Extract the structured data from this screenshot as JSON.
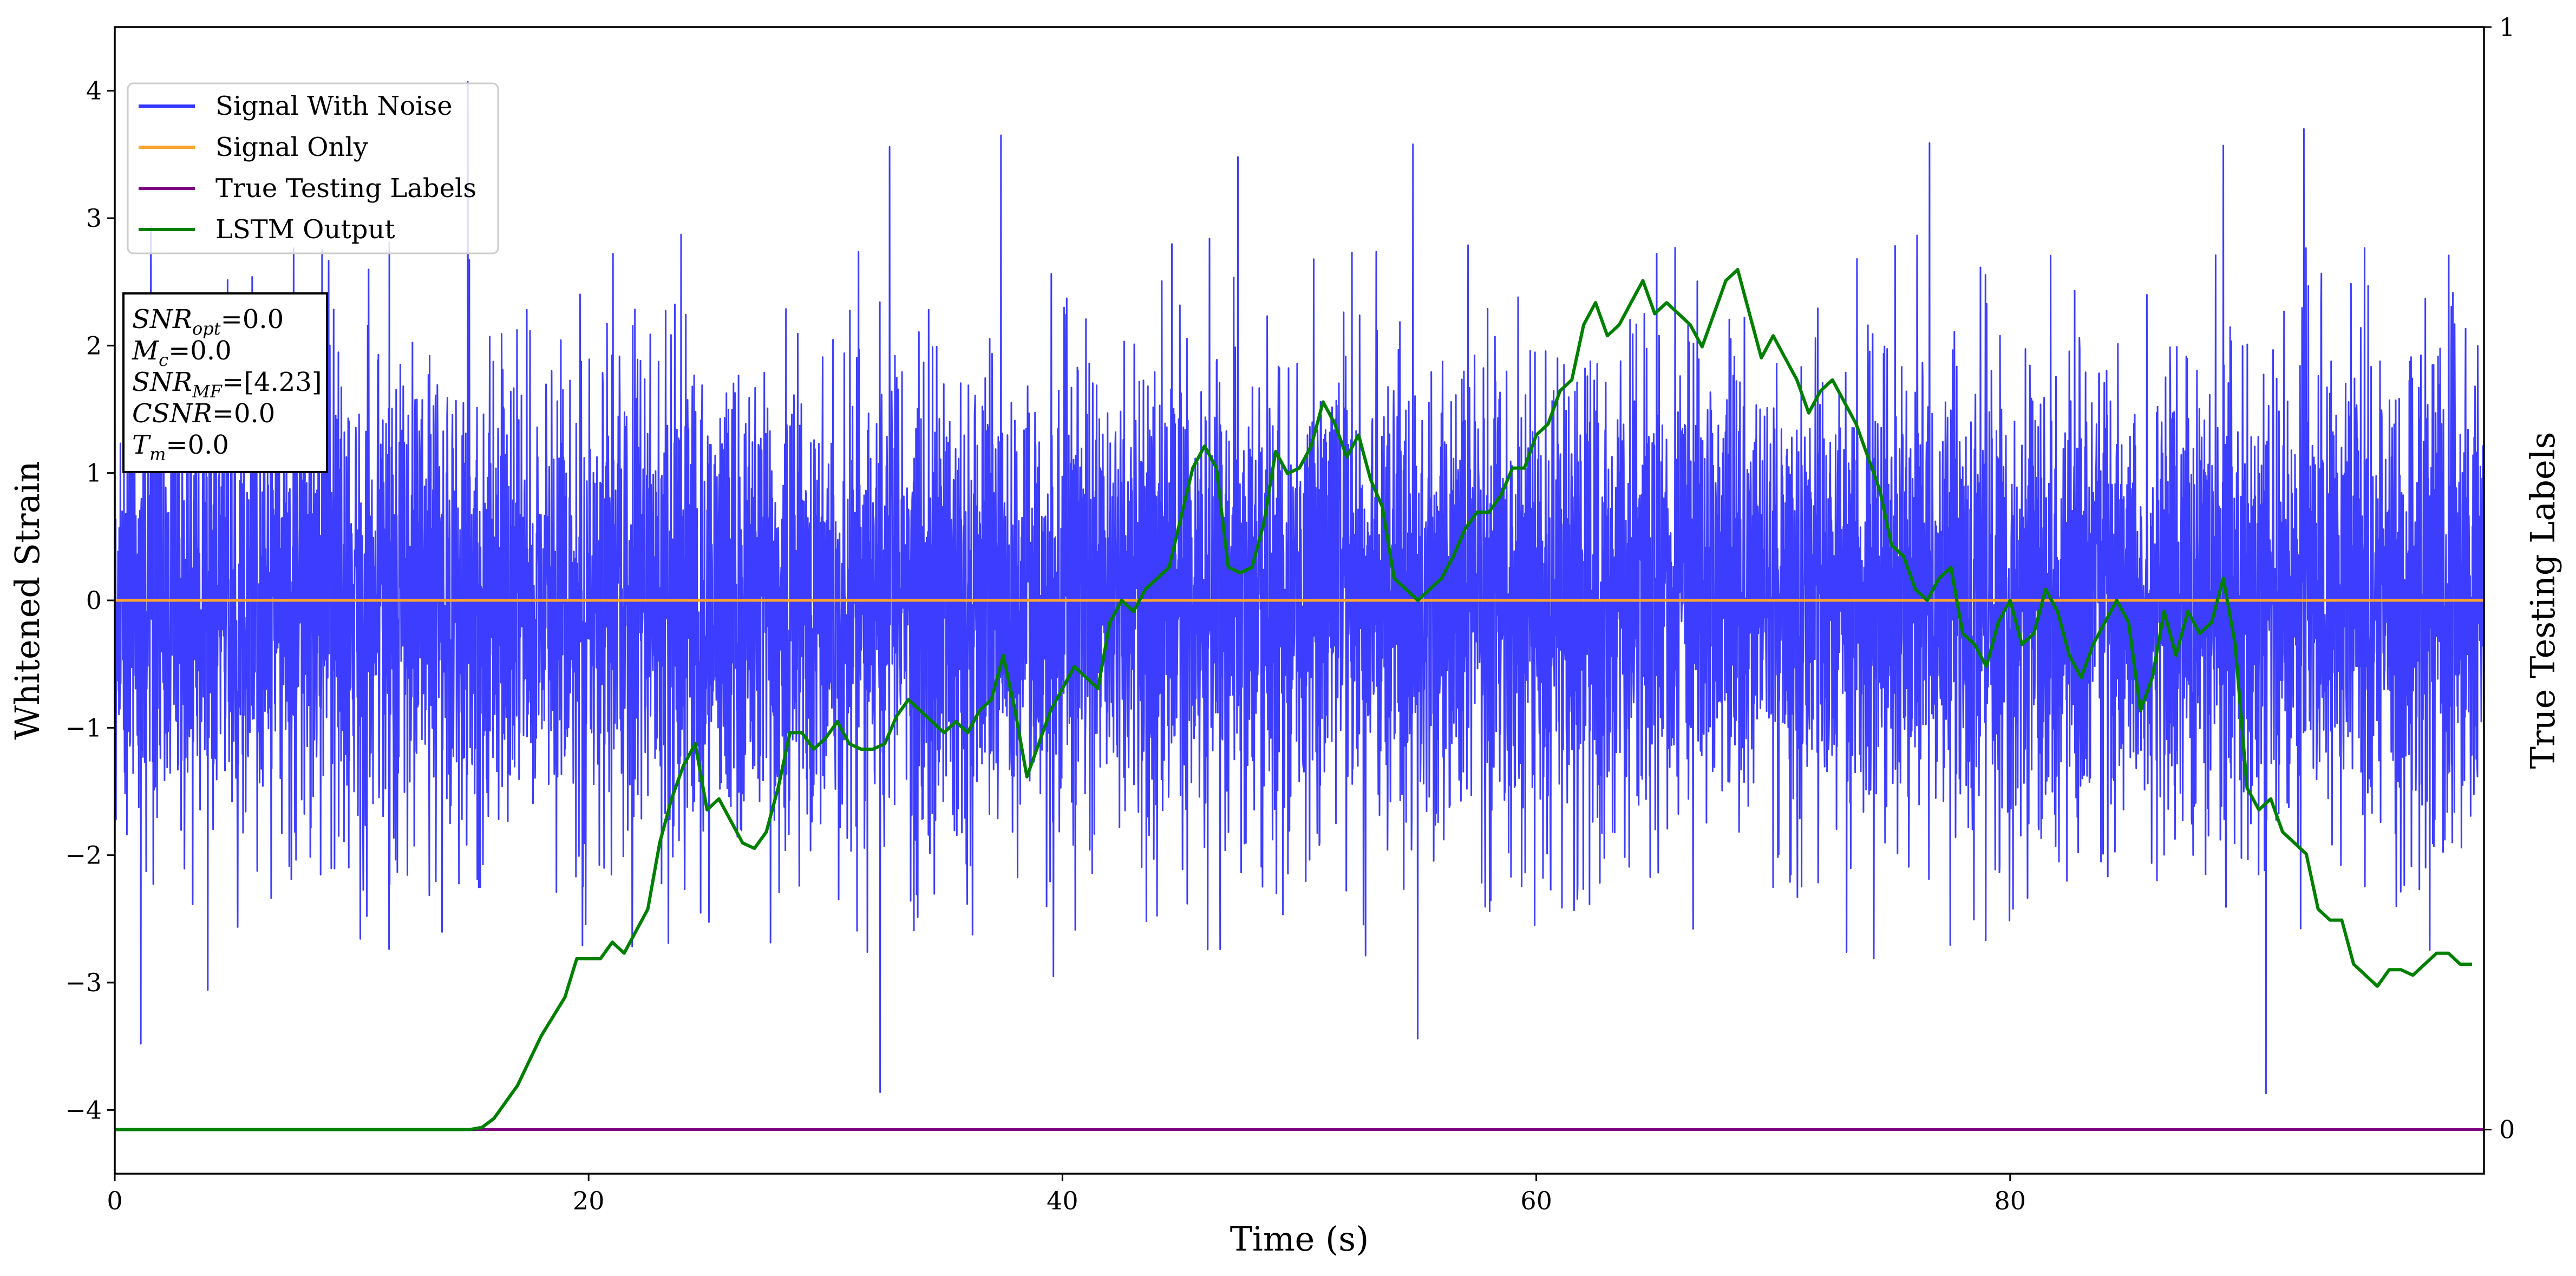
{
  "chart_data": {
    "type": "line",
    "xlabel": "Time (s)",
    "ylabel": "Whitened Strain",
    "y2label": "True Testing Labels",
    "xlim": [
      0,
      100
    ],
    "ylim": [
      -4.5,
      4.5
    ],
    "y2lim": [
      -0.04,
      1.0
    ],
    "x_ticks": [
      0,
      20,
      40,
      60,
      80
    ],
    "y_ticks": [
      -4,
      -3,
      -2,
      -1,
      0,
      1,
      2,
      3,
      4
    ],
    "y2_ticks": [
      0,
      1
    ],
    "grid": false,
    "legend_position": "upper-left",
    "series": [
      {
        "name": "Signal With Noise",
        "color": "#3333ff",
        "axis": "left",
        "description_values": "whitened gaussian noise, bulk amplitude about ±1.5 with peaks reaching about ±3.9 over 0–100 s",
        "peaks": [
          {
            "x": 1.1,
            "y": -3.48
          },
          {
            "x": 14.9,
            "y": 4.07
          },
          {
            "x": 32.3,
            "y": -3.86
          },
          {
            "x": 32.7,
            "y": 3.56
          },
          {
            "x": 37.4,
            "y": 3.65
          },
          {
            "x": 47.4,
            "y": 3.48
          },
          {
            "x": 54.8,
            "y": 3.58
          },
          {
            "x": 55.0,
            "y": -3.44
          },
          {
            "x": 76.6,
            "y": 3.59
          },
          {
            "x": 89.0,
            "y": 3.57
          },
          {
            "x": 90.8,
            "y": -3.87
          },
          {
            "x": 92.4,
            "y": 3.7
          }
        ]
      },
      {
        "name": "Signal Only",
        "color": "#ffa530",
        "axis": "left",
        "x": [
          0,
          100
        ],
        "y": [
          0,
          0
        ]
      },
      {
        "name": "True Testing Labels",
        "color": "#800080",
        "axis": "right",
        "x": [
          0,
          100
        ],
        "y": [
          0,
          0
        ]
      },
      {
        "name": "LSTM Output",
        "color": "#008000",
        "axis": "right",
        "x": [
          0,
          15,
          15.5,
          16,
          17,
          18,
          19,
          19.5,
          20,
          20.5,
          21,
          21.5,
          22,
          22.5,
          23,
          23.5,
          24,
          24.5,
          25,
          25.5,
          26,
          26.5,
          27,
          27.5,
          28,
          28.5,
          29,
          29.5,
          30,
          30.5,
          31,
          31.5,
          32,
          32.5,
          33,
          33.5,
          34,
          34.5,
          35,
          35.5,
          36,
          36.5,
          37,
          37.5,
          38,
          38.5,
          39,
          39.5,
          40,
          40.5,
          41,
          41.5,
          42,
          42.5,
          43,
          43.5,
          44,
          44.5,
          45,
          45.5,
          46,
          46.5,
          47,
          47.5,
          48,
          48.5,
          49,
          49.5,
          50,
          50.5,
          51,
          51.5,
          52,
          52.5,
          53,
          53.5,
          54,
          54.5,
          55,
          55.5,
          56,
          56.5,
          57,
          57.5,
          58,
          58.5,
          59,
          59.5,
          60,
          60.5,
          61,
          61.5,
          62,
          62.5,
          63,
          63.5,
          64,
          64.5,
          65,
          65.5,
          66,
          66.5,
          67,
          67.5,
          68,
          68.5,
          69,
          69.5,
          70,
          70.5,
          71,
          71.5,
          72,
          72.5,
          73,
          73.5,
          74,
          74.5,
          75,
          75.5,
          76,
          76.5,
          77,
          77.5,
          78,
          78.5,
          79,
          79.5,
          80,
          80.5,
          81,
          81.5,
          82,
          82.5,
          83,
          83.5,
          84,
          84.5,
          85,
          85.5,
          86,
          86.5,
          87,
          87.5,
          88,
          88.5,
          89,
          89.5,
          90,
          90.5,
          91,
          91.5,
          92,
          92.5,
          93,
          93.5,
          94,
          94.5,
          95,
          95.5,
          96,
          96.5,
          97,
          97.5,
          98,
          98.5,
          99,
          99.5
        ],
        "y": [
          0.0,
          0.0,
          0.002,
          0.01,
          0.04,
          0.085,
          0.12,
          0.155,
          0.155,
          0.155,
          0.17,
          0.16,
          0.18,
          0.2,
          0.26,
          0.3,
          0.33,
          0.35,
          0.29,
          0.3,
          0.28,
          0.26,
          0.255,
          0.27,
          0.31,
          0.36,
          0.36,
          0.345,
          0.355,
          0.37,
          0.35,
          0.345,
          0.345,
          0.35,
          0.375,
          0.39,
          0.38,
          0.37,
          0.36,
          0.37,
          0.36,
          0.38,
          0.39,
          0.43,
          0.38,
          0.32,
          0.35,
          0.38,
          0.4,
          0.42,
          0.41,
          0.4,
          0.46,
          0.48,
          0.47,
          0.49,
          0.5,
          0.51,
          0.555,
          0.6,
          0.62,
          0.6,
          0.51,
          0.505,
          0.51,
          0.55,
          0.615,
          0.595,
          0.6,
          0.62,
          0.66,
          0.64,
          0.61,
          0.63,
          0.59,
          0.565,
          0.5,
          0.49,
          0.48,
          0.49,
          0.5,
          0.52,
          0.545,
          0.56,
          0.56,
          0.575,
          0.6,
          0.6,
          0.63,
          0.64,
          0.67,
          0.68,
          0.73,
          0.75,
          0.72,
          0.73,
          0.75,
          0.77,
          0.74,
          0.75,
          0.74,
          0.73,
          0.71,
          0.74,
          0.77,
          0.78,
          0.74,
          0.7,
          0.72,
          0.7,
          0.68,
          0.65,
          0.67,
          0.68,
          0.66,
          0.64,
          0.61,
          0.58,
          0.53,
          0.52,
          0.49,
          0.48,
          0.5,
          0.51,
          0.45,
          0.44,
          0.42,
          0.46,
          0.48,
          0.44,
          0.45,
          0.49,
          0.47,
          0.43,
          0.41,
          0.44,
          0.46,
          0.48,
          0.46,
          0.38,
          0.41,
          0.47,
          0.43,
          0.47,
          0.45,
          0.46,
          0.5,
          0.44,
          0.31,
          0.29,
          0.3,
          0.27,
          0.26,
          0.25,
          0.2,
          0.19,
          0.19,
          0.15,
          0.14,
          0.13,
          0.145,
          0.145,
          0.14,
          0.15,
          0.16,
          0.16,
          0.15,
          0.15
        ]
      }
    ]
  },
  "info_box": {
    "line1": {
      "base": "SNR",
      "sub": "opt",
      "value": "=0.0"
    },
    "line2": {
      "base": "M",
      "sub": "c",
      "value": "=0.0"
    },
    "line3": {
      "base": "SNR",
      "sub": "MF",
      "value": "=[4.23]"
    },
    "line4": {
      "base": "CSNR",
      "value": "=0.0"
    },
    "line5": {
      "base": "T",
      "sub": "m",
      "value": "=0.0"
    }
  }
}
